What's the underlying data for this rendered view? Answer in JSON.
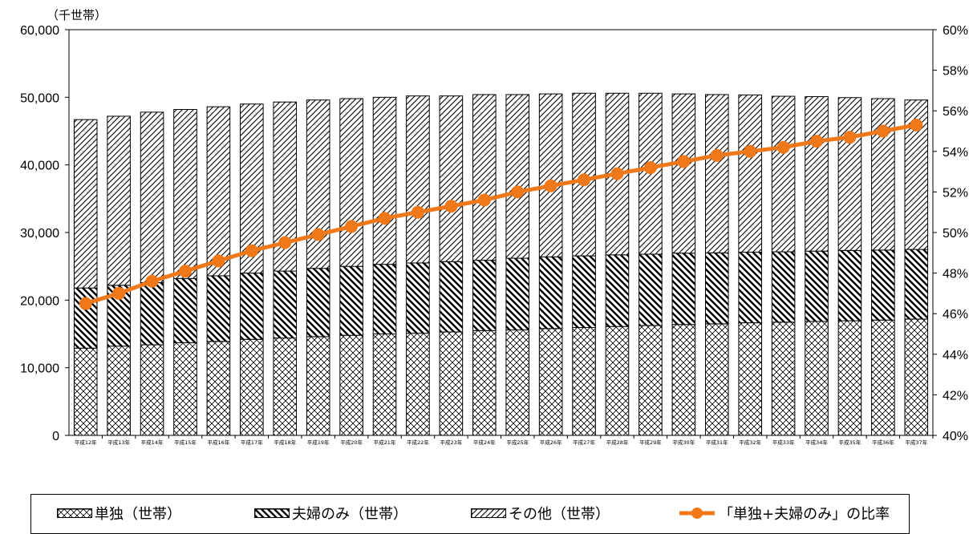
{
  "unit_label": "（千世帯）",
  "legend": {
    "single": "単独（世帯）",
    "couple": "夫婦のみ（世帯）",
    "other": "その他（世帯）",
    "ratio": "「単独+夫婦のみ」の比率"
  },
  "colors": {
    "line": "#f07818",
    "bar_fill": "#ffffff",
    "hatch": "#000000"
  },
  "chart_data": {
    "type": "bar",
    "stacked": true,
    "categories": [
      "平成12年",
      "平成13年",
      "平成14年",
      "平成15年",
      "平成16年",
      "平成17年",
      "平成18年",
      "平成19年",
      "平成20年",
      "平成21年",
      "平成22年",
      "平成23年",
      "平成24年",
      "平成25年",
      "平成26年",
      "平成27年",
      "平成28年",
      "平成29年",
      "平成30年",
      "平成31年",
      "平成32年",
      "平成33年",
      "平成34年",
      "平成35年",
      "平成36年",
      "平成37年"
    ],
    "series": [
      {
        "name": "単独（世帯）",
        "pattern": "crosshatch",
        "values": [
          12900,
          13200,
          13400,
          13700,
          13900,
          14200,
          14400,
          14600,
          14800,
          15000,
          15100,
          15300,
          15500,
          15600,
          15800,
          15950,
          16100,
          16250,
          16400,
          16500,
          16650,
          16750,
          16850,
          16950,
          17050,
          17200
        ]
      },
      {
        "name": "夫婦のみ（世帯）",
        "pattern": "back-diagonal",
        "values": [
          8900,
          9000,
          9200,
          9500,
          9700,
          9800,
          9900,
          10100,
          10200,
          10300,
          10400,
          10400,
          10400,
          10600,
          10600,
          10600,
          10600,
          10550,
          10550,
          10500,
          10450,
          10400,
          10400,
          10400,
          10350,
          10300
        ]
      },
      {
        "name": "その他（世帯）",
        "pattern": "forward-diagonal",
        "values": [
          24900,
          25000,
          25200,
          25000,
          25000,
          25000,
          25000,
          24900,
          24800,
          24700,
          24700,
          24500,
          24500,
          24200,
          24100,
          24050,
          23900,
          23800,
          23550,
          23400,
          23250,
          23000,
          22850,
          22600,
          22400,
          22100
        ]
      },
      {
        "name": "「単独+夫婦のみ」の比率",
        "type": "line",
        "axis": "right",
        "values": [
          0.465,
          0.47,
          0.476,
          0.481,
          0.486,
          0.491,
          0.495,
          0.499,
          0.503,
          0.507,
          0.51,
          0.513,
          0.516,
          0.52,
          0.523,
          0.526,
          0.529,
          0.532,
          0.535,
          0.538,
          0.54,
          0.542,
          0.545,
          0.547,
          0.55,
          0.553
        ]
      }
    ],
    "y_left": {
      "min": 0,
      "max": 60000,
      "ticks": [
        "0",
        "10,000",
        "20,000",
        "30,000",
        "40,000",
        "50,000",
        "60,000"
      ]
    },
    "y_right": {
      "min": 0.4,
      "max": 0.6,
      "ticks": [
        "40%",
        "42%",
        "44%",
        "46%",
        "48%",
        "50%",
        "52%",
        "54%",
        "56%",
        "58%",
        "60%"
      ]
    },
    "grid": false,
    "legend_position": "bottom"
  }
}
